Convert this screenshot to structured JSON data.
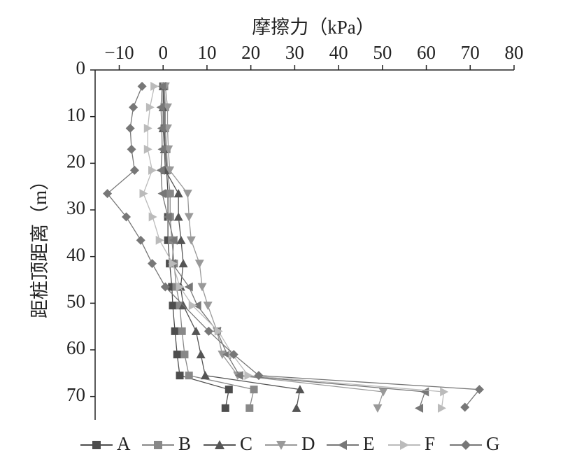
{
  "chart_data": {
    "type": "line",
    "x_label": "摩擦力（kPa）",
    "y_label": "距桩顶距离（m）",
    "xlim": [
      -15.5,
      80
    ],
    "xticks": [
      {
        "value": -10,
        "label": "−10"
      },
      0,
      10,
      20,
      30,
      40,
      50,
      60,
      70,
      80
    ],
    "ylim": [
      0,
      75
    ],
    "yticks": [
      0,
      10,
      20,
      30,
      40,
      50,
      60,
      70
    ],
    "y_inverted": true,
    "x_axis_position": "top",
    "legend": "bottom",
    "series": [
      {
        "name": "A",
        "color": "#4d4d4d",
        "marker": "square",
        "x": [
          0,
          0.3,
          0.3,
          0.5,
          0.8,
          1.1,
          1.1,
          1.1,
          1.5,
          2,
          2.2,
          2.7,
          3.2,
          3.8,
          15,
          14.2
        ],
        "y": [
          3.5,
          8,
          12.5,
          17,
          21.5,
          26.5,
          31.5,
          36.5,
          41.5,
          46.5,
          50.5,
          56,
          61,
          65.5,
          68.5,
          72.5
        ]
      },
      {
        "name": "B",
        "color": "#888888",
        "marker": "square",
        "x": [
          0.3,
          0.5,
          0.5,
          0.8,
          1,
          1.6,
          1.6,
          2,
          2.5,
          3,
          3.8,
          4.3,
          4.9,
          5.9,
          20.7,
          19.7
        ],
        "y": [
          3.5,
          8,
          12.5,
          17,
          21.5,
          26.5,
          31.5,
          36.5,
          41.5,
          46.5,
          50.5,
          56,
          61,
          65.5,
          68.5,
          72.5
        ]
      },
      {
        "name": "C",
        "color": "#555555",
        "marker": "triangle-up",
        "x": [
          0,
          0,
          0,
          0.3,
          0.5,
          3.5,
          3.5,
          4.1,
          4.6,
          4,
          4.6,
          7.5,
          8.6,
          9.6,
          31.2,
          30.4
        ],
        "y": [
          3.5,
          8,
          12.5,
          17,
          21.5,
          26.5,
          31.5,
          36.5,
          41.5,
          46.5,
          50.5,
          56,
          61,
          65.5,
          68.5,
          72.5
        ]
      },
      {
        "name": "D",
        "color": "#999999",
        "marker": "triangle-down",
        "x": [
          0.5,
          1,
          1,
          1.2,
          1.5,
          5.6,
          5.9,
          6.4,
          8.3,
          8.9,
          10.2,
          12.3,
          13.5,
          17,
          50.2,
          48.9
        ],
        "y": [
          3.5,
          8,
          12.5,
          17,
          21.5,
          26.5,
          31.5,
          36.5,
          41.5,
          46.5,
          50.5,
          56,
          61,
          65.5,
          69,
          72.5
        ]
      },
      {
        "name": "E",
        "color": "#777777",
        "marker": "triangle-left",
        "x": [
          -0.2,
          -0.5,
          -0.3,
          -0.2,
          -0.5,
          -0.2,
          1.1,
          2.4,
          2.1,
          5.9,
          7.8,
          12.3,
          14.6,
          17.4,
          59.7,
          58.4
        ],
        "y": [
          3.5,
          8,
          12.5,
          17,
          21.5,
          26.5,
          31.5,
          36.5,
          41.5,
          46.5,
          50.5,
          56,
          61,
          65.5,
          69,
          72.5
        ]
      },
      {
        "name": "F",
        "color": "#bbbbbb",
        "marker": "triangle-right",
        "x": [
          -2,
          -3,
          -3.5,
          -3.5,
          -2.5,
          -4.5,
          -2.4,
          -0.8,
          2.2,
          3.8,
          6.7,
          12.6,
          15.8,
          19.4,
          64,
          63.5
        ],
        "y": [
          3.5,
          8,
          12.5,
          17,
          21.5,
          26.5,
          31.5,
          36.5,
          41.5,
          46.5,
          50.5,
          56,
          61,
          65.5,
          69,
          72.5
        ]
      },
      {
        "name": "G",
        "color": "#777777",
        "marker": "diamond",
        "x": [
          -4.8,
          -6.8,
          -7.5,
          -7.2,
          -6.5,
          -12.7,
          -8.4,
          -5.1,
          -2.5,
          0.5,
          10.4,
          16.1,
          21.8,
          72.1,
          68.8
        ],
        "y": [
          3.5,
          8,
          12.5,
          17,
          21.5,
          26.5,
          31.5,
          36.5,
          41.5,
          46.5,
          56,
          61,
          65.5,
          68.5,
          72.3
        ]
      }
    ]
  }
}
